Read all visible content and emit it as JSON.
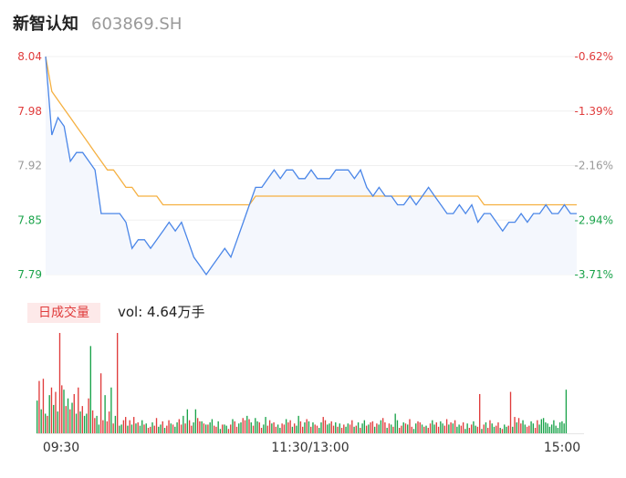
{
  "header": {
    "name": "新智认知",
    "code": "603869.SH"
  },
  "colors": {
    "up": "#e03c3c",
    "down": "#1aa34a",
    "price_line": "#4a86e8",
    "avg_line": "#f5b041",
    "area_fill": "#f4f7fd"
  },
  "chart_data": [
    {
      "type": "line",
      "subtype": "intraday_price",
      "y_ticks": [
        "8.04",
        "7.98",
        "7.92",
        "7.85",
        "7.79"
      ],
      "y_pct_ticks": [
        "-0.62%",
        "-1.39%",
        "-2.16%",
        "-2.94%",
        "-3.71%"
      ],
      "ylim": [
        7.79,
        8.04
      ],
      "x_ticks": [
        "09:30",
        "11:30/13:00",
        "15:00"
      ],
      "series": [
        {
          "values": [
            8.04,
            7.95,
            7.97,
            7.96,
            7.92,
            7.93,
            7.93,
            7.92,
            7.91,
            7.86,
            7.86,
            7.86,
            7.86,
            7.85,
            7.82,
            7.83,
            7.83,
            7.82,
            7.83,
            7.84,
            7.85,
            7.84,
            7.85,
            7.83,
            7.81,
            7.8,
            7.79,
            7.8,
            7.81,
            7.82,
            7.81,
            7.83,
            7.85,
            7.87,
            7.89,
            7.89,
            7.9,
            7.91,
            7.9,
            7.91,
            7.91,
            7.9,
            7.9,
            7.91,
            7.9,
            7.9,
            7.9,
            7.91,
            7.91,
            7.91,
            7.9,
            7.91,
            7.89,
            7.88,
            7.89,
            7.88,
            7.88,
            7.87,
            7.87,
            7.88,
            7.87,
            7.88,
            7.89,
            7.88,
            7.87,
            7.86,
            7.86,
            7.87,
            7.86,
            7.87,
            7.85,
            7.86,
            7.86,
            7.85,
            7.84,
            7.85,
            7.85,
            7.86,
            7.85,
            7.86,
            7.86,
            7.87,
            7.86,
            7.86,
            7.87,
            7.86,
            7.86
          ]
        },
        {
          "values": [
            8.04,
            8.0,
            7.99,
            7.98,
            7.97,
            7.96,
            7.95,
            7.94,
            7.93,
            7.92,
            7.91,
            7.91,
            7.9,
            7.89,
            7.89,
            7.88,
            7.88,
            7.88,
            7.88,
            7.87,
            7.87,
            7.87,
            7.87,
            7.87,
            7.87,
            7.87,
            7.87,
            7.87,
            7.87,
            7.87,
            7.87,
            7.87,
            7.87,
            7.87,
            7.88,
            7.88,
            7.88,
            7.88,
            7.88,
            7.88,
            7.88,
            7.88,
            7.88,
            7.88,
            7.88,
            7.88,
            7.88,
            7.88,
            7.88,
            7.88,
            7.88,
            7.88,
            7.88,
            7.88,
            7.88,
            7.88,
            7.88,
            7.88,
            7.88,
            7.88,
            7.88,
            7.88,
            7.88,
            7.88,
            7.88,
            7.88,
            7.88,
            7.88,
            7.88,
            7.88,
            7.88,
            7.87,
            7.87,
            7.87,
            7.87,
            7.87,
            7.87,
            7.87,
            7.87,
            7.87,
            7.87,
            7.87,
            7.87,
            7.87,
            7.87,
            7.87,
            7.87
          ]
        }
      ]
    },
    {
      "type": "bar",
      "subtype": "volume",
      "badge_label": "日成交量",
      "vol_label": "vol: 4.64万手",
      "x_ticks": [
        "09:30",
        "11:30/13:00",
        "15:00"
      ],
      "values": [
        30,
        48,
        22,
        50,
        18,
        16,
        35,
        42,
        26,
        38,
        20,
        92,
        44,
        40,
        25,
        32,
        22,
        28,
        36,
        18,
        42,
        20,
        25,
        16,
        18,
        32,
        80,
        21,
        14,
        16,
        8,
        55,
        12,
        35,
        11,
        20,
        42,
        9,
        16,
        92,
        7,
        8,
        12,
        15,
        7,
        12,
        8,
        15,
        9,
        10,
        7,
        12,
        8,
        9,
        5,
        6,
        10,
        7,
        14,
        6,
        8,
        11,
        5,
        7,
        12,
        9,
        8,
        6,
        10,
        13,
        8,
        16,
        9,
        22,
        12,
        7,
        10,
        22,
        14,
        11,
        11,
        9,
        8,
        8,
        10,
        13,
        7,
        6,
        11,
        4,
        8,
        8,
        7,
        4,
        8,
        13,
        11,
        6,
        9,
        10,
        14,
        12,
        16,
        13,
        10,
        7,
        14,
        11,
        10,
        5,
        8,
        15,
        7,
        12,
        9,
        10,
        6,
        8,
        5,
        9,
        8,
        13,
        10,
        12,
        6,
        9,
        7,
        16,
        11,
        6,
        10,
        13,
        11,
        6,
        10,
        8,
        7,
        5,
        10,
        15,
        12,
        8,
        9,
        11,
        7,
        10,
        6,
        9,
        5,
        8,
        6,
        9,
        8,
        12,
        6,
        7,
        10,
        5,
        9,
        12,
        7,
        8,
        10,
        11,
        6,
        9,
        8,
        12,
        14,
        10,
        5,
        9,
        8,
        6,
        18,
        12,
        5,
        7,
        10,
        9,
        8,
        13,
        6,
        4,
        9,
        11,
        10,
        8,
        6,
        7,
        5,
        9,
        12,
        8,
        10,
        6,
        11,
        9,
        7,
        13,
        8,
        10,
        9,
        12,
        6,
        8,
        7,
        10,
        4,
        9,
        5,
        8,
        11,
        7,
        6,
        36,
        4,
        8,
        10,
        5,
        12,
        9,
        6,
        7,
        10,
        5,
        4,
        8,
        6,
        7,
        38,
        6,
        15,
        10,
        14,
        9,
        12,
        8,
        6,
        7,
        11,
        9,
        5,
        12,
        8,
        13,
        14,
        10,
        9,
        6,
        8,
        12,
        7,
        5,
        10,
        11,
        9,
        40
      ],
      "dirs": [
        "d",
        "u",
        "d",
        "u",
        "d",
        "u",
        "d",
        "u",
        "d",
        "u",
        "d",
        "u",
        "u",
        "d",
        "u",
        "d",
        "u",
        "d",
        "u",
        "d",
        "u",
        "d",
        "u",
        "d",
        "d",
        "u",
        "d",
        "u",
        "u",
        "d",
        "d",
        "u",
        "u",
        "d",
        "u",
        "u",
        "d",
        "u",
        "d",
        "u",
        "d",
        "d",
        "u",
        "u",
        "d",
        "u",
        "d",
        "u",
        "d",
        "u",
        "d",
        "d",
        "u",
        "d",
        "u",
        "u",
        "d",
        "u",
        "u",
        "d",
        "d",
        "u",
        "d",
        "u",
        "u",
        "d",
        "u",
        "d",
        "d",
        "u",
        "u",
        "d",
        "u",
        "d",
        "u",
        "u",
        "d",
        "d",
        "u",
        "u",
        "d",
        "u",
        "d",
        "u",
        "d",
        "d",
        "u",
        "u",
        "d",
        "d",
        "u",
        "d",
        "d",
        "u",
        "u",
        "d",
        "u",
        "u",
        "d",
        "d",
        "u",
        "u",
        "d",
        "u",
        "d",
        "u",
        "d",
        "d",
        "u",
        "u",
        "d",
        "d",
        "u",
        "u",
        "d",
        "u",
        "u",
        "d",
        "d",
        "u",
        "u",
        "d",
        "u",
        "u",
        "d",
        "u",
        "d",
        "d",
        "u",
        "u",
        "d",
        "u",
        "d",
        "u",
        "d",
        "u",
        "u",
        "d",
        "d",
        "u",
        "u",
        "d",
        "d",
        "u",
        "u",
        "d",
        "u",
        "d",
        "u",
        "u",
        "d",
        "d",
        "u",
        "u",
        "d",
        "u",
        "d",
        "u",
        "d",
        "d",
        "u",
        "d",
        "u",
        "u",
        "d",
        "u",
        "d",
        "d",
        "u",
        "u",
        "d",
        "u",
        "d",
        "u",
        "d",
        "d",
        "u",
        "u",
        "d",
        "u",
        "d",
        "u",
        "u",
        "d",
        "d",
        "u",
        "u",
        "d",
        "u",
        "d",
        "u",
        "u",
        "d",
        "d",
        "u",
        "u",
        "d",
        "d",
        "u",
        "u",
        "d",
        "u",
        "d",
        "u",
        "d",
        "d",
        "u",
        "u",
        "d",
        "d",
        "u",
        "u",
        "d",
        "d",
        "u",
        "u",
        "d",
        "u",
        "d",
        "u",
        "u",
        "d",
        "d",
        "u",
        "u",
        "d",
        "u",
        "d",
        "d",
        "u",
        "u",
        "d",
        "u",
        "d",
        "u",
        "u",
        "d",
        "d",
        "u",
        "u",
        "d",
        "d",
        "u",
        "u",
        "d"
      ]
    }
  ]
}
